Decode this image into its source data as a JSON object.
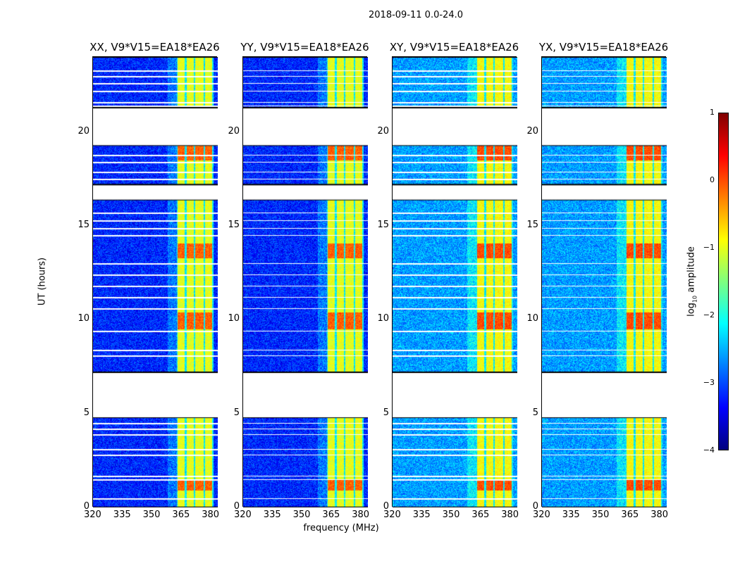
{
  "chart_data": {
    "type": "heatmap",
    "suptitle": "2018-09-11 0.0-24.0",
    "xlabel": "frequency (MHz)",
    "ylabel": "UT (hours)",
    "xlim": [
      320,
      383.5
    ],
    "ylim": [
      0,
      24
    ],
    "xticks": [
      "320",
      "335",
      "350",
      "365",
      "380"
    ],
    "xtick_values": [
      320,
      335,
      350,
      365,
      380
    ],
    "yticks": [
      "0",
      "5",
      "10",
      "15",
      "20"
    ],
    "ytick_values": [
      0,
      5,
      10,
      15,
      20
    ],
    "colorbar": {
      "label_main": "log",
      "label_sub": "10",
      "label_rest": " amplitude",
      "range": [
        -4,
        1
      ],
      "ticks": [
        "1",
        "0",
        "−1",
        "−2",
        "−3",
        "−4"
      ],
      "tick_values": [
        1,
        0,
        -1,
        -2,
        -3,
        -4
      ],
      "colormap": "jet"
    },
    "data_time_blocks_hours": [
      [
        0,
        4.8
      ],
      [
        7.2,
        16.4
      ],
      [
        17.2,
        19.3
      ],
      [
        21.3,
        24
      ]
    ],
    "bright_band_segments_mhz": [
      [
        363,
        366.6
      ],
      [
        367.4,
        371.2
      ],
      [
        372,
        376.2
      ],
      [
        377,
        380.6
      ]
    ],
    "strong_emission_hours": [
      [
        18.5,
        19.3
      ],
      [
        13.3,
        14.1
      ],
      [
        9.5,
        10.4
      ],
      [
        0.9,
        1.5
      ]
    ],
    "flagged_rows_hours": [
      23.3,
      23.0,
      22.6,
      22.2,
      21.6,
      21.4,
      18.8,
      18.4,
      17.9,
      17.5,
      15.7,
      15.3,
      14.9,
      14.5,
      13.0,
      12.4,
      11.8,
      11.2,
      10.6,
      9.4,
      8.4,
      8.1,
      4.5,
      4.2,
      3.9,
      3.1,
      2.8,
      1.7,
      1.5,
      0.5
    ],
    "panels": [
      {
        "title": "XX, V9*V15=EA18*EA26",
        "background_log_amp": -3.2,
        "band_log_amp": -1.0
      },
      {
        "title": "YY, V9*V15=EA18*EA26",
        "background_log_amp": -3.2,
        "band_log_amp": -1.0
      },
      {
        "title": "XY, V9*V15=EA18*EA26",
        "background_log_amp": -2.6,
        "band_log_amp": -0.9
      },
      {
        "title": "YX, V9*V15=EA18*EA26",
        "background_log_amp": -2.6,
        "band_log_amp": -0.9
      }
    ]
  }
}
